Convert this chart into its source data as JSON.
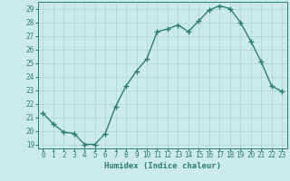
{
  "x": [
    0,
    1,
    2,
    3,
    4,
    5,
    6,
    7,
    8,
    9,
    10,
    11,
    12,
    13,
    14,
    15,
    16,
    17,
    18,
    19,
    20,
    21,
    22,
    23
  ],
  "y": [
    21.3,
    20.5,
    19.9,
    19.8,
    19.0,
    19.0,
    19.8,
    21.8,
    23.3,
    24.4,
    25.3,
    27.3,
    27.5,
    27.8,
    27.3,
    28.1,
    28.9,
    29.2,
    29.0,
    28.0,
    26.6,
    25.1,
    23.3,
    22.9
  ],
  "line_color": "#2e7d6e",
  "marker": "+",
  "markersize": 4,
  "linewidth": 1.0,
  "bg_color": "#cceaec",
  "grid_color": "#aad4d8",
  "xlabel": "Humidex (Indice chaleur)",
  "xlim": [
    -0.5,
    23.5
  ],
  "ylim": [
    18.7,
    29.5
  ],
  "yticks": [
    19,
    20,
    21,
    22,
    23,
    24,
    25,
    26,
    27,
    28,
    29
  ],
  "xticks": [
    0,
    1,
    2,
    3,
    4,
    5,
    6,
    7,
    8,
    9,
    10,
    11,
    12,
    13,
    14,
    15,
    16,
    17,
    18,
    19,
    20,
    21,
    22,
    23
  ],
  "xlabel_fontsize": 6.5,
  "tick_fontsize": 5.5,
  "tick_color": "#2e7d6e",
  "axis_color": "#2e7d6e"
}
